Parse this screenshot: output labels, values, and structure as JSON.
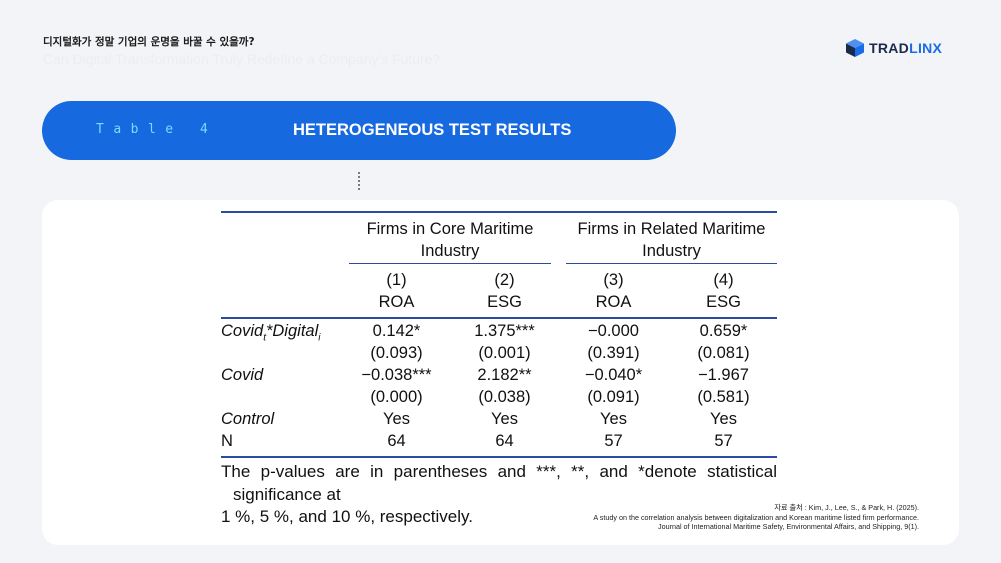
{
  "header": {
    "korean_title": "디지털화가 정말 기업의 운명을 바꿀 수 있을까?",
    "english_title": "Can Digital Transformation Truly Redefine a Company's Future?",
    "logo_trad": "TRAD",
    "logo_linx": "LINX"
  },
  "banner": {
    "table_label": "Table 4",
    "title": "HETEROGENEOUS TEST RESULTS"
  },
  "table": {
    "groups": [
      "Firms in Core Maritime Industry",
      "Firms in Related Maritime Industry"
    ],
    "columns": [
      {
        "num": "(1)",
        "name": "ROA"
      },
      {
        "num": "(2)",
        "name": "ESG"
      },
      {
        "num": "(3)",
        "name": "ROA"
      },
      {
        "num": "(4)",
        "name": "ESG"
      }
    ],
    "row_covid_digital": {
      "label_main": "Covid",
      "label_sub_t": "t",
      "label_mid": "*Digital",
      "label_sub_i": "i",
      "coef": [
        "0.142*",
        "1.375***",
        "−0.000",
        "0.659*"
      ],
      "p": [
        "(0.093)",
        "(0.001)",
        "(0.391)",
        "(0.081)"
      ]
    },
    "row_covid": {
      "label": "Covid",
      "coef": [
        "−0.038***",
        "2.182**",
        "−0.040*",
        "−1.967"
      ],
      "p": [
        "(0.000)",
        "(0.038)",
        "(0.091)",
        "(0.581)"
      ]
    },
    "row_control": {
      "label": "Control",
      "values": [
        "Yes",
        "Yes",
        "Yes",
        "Yes"
      ]
    },
    "row_n": {
      "label": "N",
      "values": [
        "64",
        "64",
        "57",
        "57"
      ]
    }
  },
  "notes": {
    "line1": "The p-values are in parentheses and ***, **, and *denote statistical",
    "line2": "significance at",
    "line3": "1 %, 5 %, and 10 %, respectively."
  },
  "source": {
    "line1": "자료 출처 : Kim, J., Lee, S., & Park, H. (2025).",
    "line2": "A study on the correlation analysis between digitalization and Korean maritime listed firm performance.",
    "line3": "Journal of International Maritime Safety, Environmental Affairs, and Shipping, 9(1)."
  },
  "colors": {
    "background": "#f3f4f7",
    "banner": "#1769e0",
    "banner_label": "#7fd8ff",
    "rule": "#2b4aa0",
    "logo_dark": "#1b2a4a",
    "logo_blue": "#1a6be8"
  },
  "icons": {
    "logo": "tradlinx-cube-icon"
  }
}
